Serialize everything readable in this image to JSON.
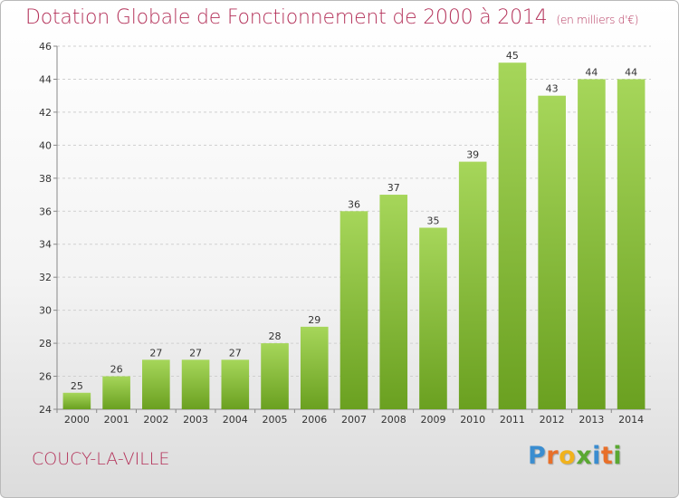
{
  "title": "Dotation Globale de Fonctionnement de 2000 à 2014",
  "unit_note": "(en milliers d'€)",
  "commune": "COUCY-LA-VILLE",
  "logo": {
    "letters": [
      "P",
      "r",
      "o",
      "x",
      "i",
      "t",
      "i"
    ],
    "colors": [
      "#3a8dd0",
      "#e8702a",
      "#f1b21c",
      "#5aa832",
      "#3a8dd0",
      "#e8702a",
      "#5aa832"
    ]
  },
  "colors": {
    "title": "#b4325a",
    "bar_light": "#a6d65a",
    "bar_dark": "#6aa020"
  },
  "chart_data": {
    "type": "bar",
    "categories": [
      "2000",
      "2001",
      "2002",
      "2003",
      "2004",
      "2005",
      "2006",
      "2007",
      "2008",
      "2009",
      "2010",
      "2011",
      "2012",
      "2013",
      "2014"
    ],
    "values": [
      25,
      26,
      27,
      27,
      27,
      28,
      29,
      36,
      37,
      35,
      39,
      45,
      43,
      44,
      44
    ],
    "ylim": [
      24,
      46
    ],
    "yticks": [
      24,
      26,
      28,
      30,
      32,
      34,
      36,
      38,
      40,
      42,
      44,
      46
    ],
    "grid": true,
    "data_labels": true
  }
}
